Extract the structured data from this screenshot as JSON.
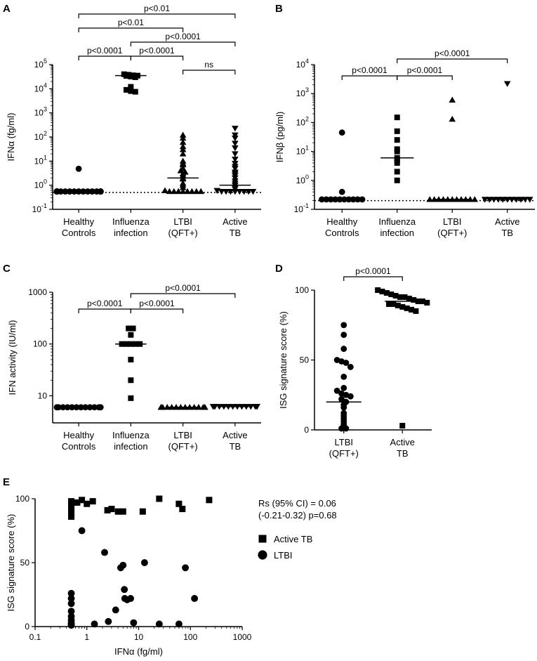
{
  "chart_data": [
    {
      "panel": "A",
      "type": "scatter",
      "scale": "log",
      "ylabel": "IFNα (fg/ml)",
      "ylim": [
        0.1,
        100000
      ],
      "yticks": [
        {
          "v": 0.1,
          "b": "10",
          "e": "-1"
        },
        {
          "v": 1,
          "b": "10",
          "e": "0"
        },
        {
          "v": 10,
          "b": "10",
          "e": "1"
        },
        {
          "v": 100,
          "b": "10",
          "e": "2"
        },
        {
          "v": 1000,
          "b": "10",
          "e": "3"
        },
        {
          "v": 10000,
          "b": "10",
          "e": "4"
        },
        {
          "v": 100000,
          "b": "10",
          "e": "5"
        }
      ],
      "detection_limit": 0.5,
      "categories": [
        [
          "Healthy",
          "Controls"
        ],
        [
          "Influenza",
          "infection"
        ],
        [
          "LTBI",
          "(QFT+)"
        ],
        [
          "Active",
          "TB"
        ]
      ],
      "groups": [
        {
          "marker": "circle",
          "median": 0.55,
          "values": [
            4.8,
            0.55,
            0.55,
            0.55,
            0.55,
            0.55,
            0.55,
            0.55,
            0.55,
            0.55,
            0.55,
            0.55,
            0.55,
            0.55,
            0.55,
            0.55,
            0.55,
            0.55,
            0.55,
            0.55
          ]
        },
        {
          "marker": "square",
          "median": 35000,
          "values": [
            40000,
            38000,
            36000,
            35000,
            34000,
            32000,
            30000,
            12000,
            9000,
            8000,
            7500
          ]
        },
        {
          "marker": "triangle-up",
          "median": 2,
          "values": [
            120,
            90,
            60,
            40,
            30,
            20,
            10,
            8,
            7,
            5,
            4,
            3.5,
            3,
            2.5,
            2,
            1.8,
            1.2,
            1,
            0.8,
            0.6,
            0.55,
            0.55,
            0.55,
            0.55,
            0.55,
            0.55,
            0.55,
            0.55
          ]
        },
        {
          "marker": "triangle-down",
          "median": 1,
          "values": [
            230,
            120,
            90,
            55,
            35,
            20,
            12,
            8,
            6,
            5,
            3.5,
            3,
            2.5,
            2,
            1.5,
            1.2,
            1,
            0.8,
            0.7,
            0.6,
            0.55,
            0.55,
            0.55,
            0.55,
            0.55,
            0.55,
            0.55,
            0.55
          ]
        }
      ],
      "brackets": [
        {
          "from": 0,
          "to": 3,
          "label": "p<0.01",
          "level": 0
        },
        {
          "from": 0,
          "to": 2,
          "label": "p<0.01",
          "level": 1
        },
        {
          "from": 1,
          "to": 3,
          "label": "p<0.0001",
          "level": 2
        },
        {
          "from": 0,
          "to": 1,
          "label": "p<0.0001",
          "level": 3
        },
        {
          "from": 1,
          "to": 2,
          "label": "p<0.0001",
          "level": 3
        },
        {
          "from": 2,
          "to": 3,
          "label": "ns",
          "level": 4
        }
      ]
    },
    {
      "panel": "B",
      "type": "scatter",
      "scale": "log",
      "ylabel": "IFNβ (pg/ml)",
      "ylim": [
        0.1,
        10000
      ],
      "yticks": [
        {
          "v": 0.1,
          "b": "10",
          "e": "-1"
        },
        {
          "v": 1,
          "b": "10",
          "e": "0"
        },
        {
          "v": 10,
          "b": "10",
          "e": "1"
        },
        {
          "v": 100,
          "b": "10",
          "e": "2"
        },
        {
          "v": 1000,
          "b": "10",
          "e": "3"
        },
        {
          "v": 10000,
          "b": "10",
          "e": "4"
        }
      ],
      "detection_limit": 0.2,
      "categories": [
        [
          "Healthy",
          "Controls"
        ],
        [
          "Influenza",
          "infection"
        ],
        [
          "LTBI",
          "(QFT+)"
        ],
        [
          "Active",
          "TB"
        ]
      ],
      "groups": [
        {
          "marker": "circle",
          "median": 0.22,
          "values": [
            45,
            0.4,
            0.22,
            0.22,
            0.22,
            0.22,
            0.22,
            0.22,
            0.22,
            0.22,
            0.22,
            0.22
          ]
        },
        {
          "marker": "square",
          "median": 6,
          "values": [
            150,
            50,
            25,
            12,
            10,
            6,
            5,
            4,
            2,
            1
          ]
        },
        {
          "marker": "triangle-up",
          "median": 0.22,
          "values": [
            600,
            130,
            0.22,
            0.22,
            0.22,
            0.22,
            0.22,
            0.22,
            0.22,
            0.22,
            0.22,
            0.22,
            0.22
          ]
        },
        {
          "marker": "triangle-down",
          "median": 0.22,
          "values": [
            2200,
            0.22,
            0.22,
            0.22,
            0.22,
            0.22,
            0.22,
            0.22,
            0.22,
            0.22,
            0.22,
            0.22
          ]
        }
      ],
      "brackets": [
        {
          "from": 1,
          "to": 3,
          "label": "p<0.0001",
          "level": 0
        },
        {
          "from": 0,
          "to": 1,
          "label": "p<0.0001",
          "level": 1
        },
        {
          "from": 1,
          "to": 2,
          "label": "p<0.0001",
          "level": 1
        }
      ]
    },
    {
      "panel": "C",
      "type": "scatter",
      "scale": "log",
      "ylabel": "IFN activity (IU/ml)",
      "ylim": [
        3,
        1000
      ],
      "yticks": [
        {
          "v": 10,
          "t": "10"
        },
        {
          "v": 100,
          "t": "100"
        },
        {
          "v": 1000,
          "t": "1000"
        }
      ],
      "categories": [
        [
          "Healthy",
          "Controls"
        ],
        [
          "Influenza",
          "infection"
        ],
        [
          "LTBI",
          "(QFT+)"
        ],
        [
          "Active",
          "TB"
        ]
      ],
      "groups": [
        {
          "marker": "circle",
          "median": 6,
          "values": [
            6,
            6,
            6,
            6,
            6,
            6,
            6,
            6,
            6,
            6,
            6,
            6
          ]
        },
        {
          "marker": "square",
          "median": 100,
          "values": [
            200,
            200,
            150,
            100,
            100,
            100,
            100,
            100,
            50,
            20,
            9
          ]
        },
        {
          "marker": "triangle-up",
          "median": 6,
          "values": [
            6,
            6,
            6,
            6,
            6,
            6,
            6,
            6,
            6,
            6,
            6,
            6,
            6,
            6
          ]
        },
        {
          "marker": "triangle-down",
          "median": 6.2,
          "values": [
            6.2,
            6.2,
            6.2,
            6.2,
            6.2,
            6.2,
            6.2,
            6.2,
            6.2,
            6.2,
            6.2,
            6.2,
            6.2,
            6.2
          ]
        }
      ],
      "brackets": [
        {
          "from": 1,
          "to": 3,
          "label": "p<0.0001",
          "level": 0
        },
        {
          "from": 0,
          "to": 1,
          "label": "p<0.0001",
          "level": 1
        },
        {
          "from": 1,
          "to": 2,
          "label": "p<0.0001",
          "level": 1
        }
      ]
    },
    {
      "panel": "D",
      "type": "scatter",
      "scale": "linear",
      "ylabel": "ISG signature score (%)",
      "ylim": [
        0,
        100
      ],
      "yticks": [
        {
          "v": 0,
          "t": "0"
        },
        {
          "v": 50,
          "t": "50"
        },
        {
          "v": 100,
          "t": "100"
        }
      ],
      "categories": [
        [
          "LTBI",
          "(QFT+)"
        ],
        [
          "Active",
          "TB"
        ]
      ],
      "groups": [
        {
          "marker": "circle",
          "median": 20,
          "values": [
            75,
            68,
            58,
            50,
            49,
            48,
            45,
            38,
            30,
            28,
            26,
            25,
            24,
            22,
            20,
            18,
            16,
            12,
            10,
            8,
            6,
            4,
            3,
            2,
            1,
            1
          ]
        },
        {
          "marker": "square",
          "median": 92,
          "values": [
            100,
            99,
            98,
            97,
            96,
            95,
            95,
            94,
            93,
            92,
            92,
            91,
            90,
            90,
            89,
            88,
            87,
            86,
            85,
            3
          ]
        }
      ],
      "brackets": [
        {
          "from": 0,
          "to": 1,
          "label": "p<0.0001",
          "level": 0
        }
      ]
    },
    {
      "panel": "E",
      "type": "scatter",
      "xscale": "log",
      "xlabel": "IFNα (fg/ml)",
      "ylabel": "ISG signature score (%)",
      "xlim": [
        0.1,
        1000
      ],
      "ylim": [
        0,
        100
      ],
      "xticks": [
        {
          "v": 0.1,
          "t": "0.1"
        },
        {
          "v": 1,
          "t": "1"
        },
        {
          "v": 10,
          "t": "10"
        },
        {
          "v": 100,
          "t": "100"
        },
        {
          "v": 1000,
          "t": "1000"
        }
      ],
      "yticks": [
        {
          "v": 0,
          "t": "0"
        },
        {
          "v": 50,
          "t": "50"
        },
        {
          "v": 100,
          "t": "100"
        }
      ],
      "annotation": [
        "Rs (95% CI) = 0.06",
        "(-0.21-0.32) p=0.68"
      ],
      "series": [
        {
          "name": "Active TB",
          "marker": "square",
          "points": [
            [
              0.5,
              98
            ],
            [
              0.5,
              95
            ],
            [
              0.5,
              92
            ],
            [
              0.5,
              90
            ],
            [
              0.5,
              88
            ],
            [
              0.5,
              86
            ],
            [
              0.65,
              97
            ],
            [
              0.8,
              99
            ],
            [
              1,
              96
            ],
            [
              1.3,
              98
            ],
            [
              2.5,
              91
            ],
            [
              3,
              92
            ],
            [
              4,
              90
            ],
            [
              5,
              90
            ],
            [
              12,
              90
            ],
            [
              25,
              100
            ],
            [
              60,
              96
            ],
            [
              70,
              92
            ],
            [
              230,
              99
            ]
          ]
        },
        {
          "name": "LTBI",
          "marker": "circle",
          "points": [
            [
              0.5,
              26
            ],
            [
              0.5,
              22
            ],
            [
              0.5,
              18
            ],
            [
              0.5,
              12
            ],
            [
              0.5,
              8
            ],
            [
              0.5,
              5
            ],
            [
              0.5,
              3
            ],
            [
              0.5,
              2
            ],
            [
              0.5,
              1
            ],
            [
              0.8,
              75
            ],
            [
              1.4,
              2
            ],
            [
              2.2,
              58
            ],
            [
              2.6,
              4
            ],
            [
              3.6,
              13
            ],
            [
              4.5,
              46
            ],
            [
              5,
              48
            ],
            [
              5.3,
              29
            ],
            [
              5.4,
              22
            ],
            [
              6,
              21
            ],
            [
              7,
              22
            ],
            [
              8,
              3
            ],
            [
              13,
              50
            ],
            [
              25,
              2
            ],
            [
              60,
              2
            ],
            [
              80,
              46
            ],
            [
              120,
              22
            ]
          ]
        }
      ]
    }
  ],
  "panel_labels": {
    "A": "A",
    "B": "B",
    "C": "C",
    "D": "D",
    "E": "E"
  }
}
